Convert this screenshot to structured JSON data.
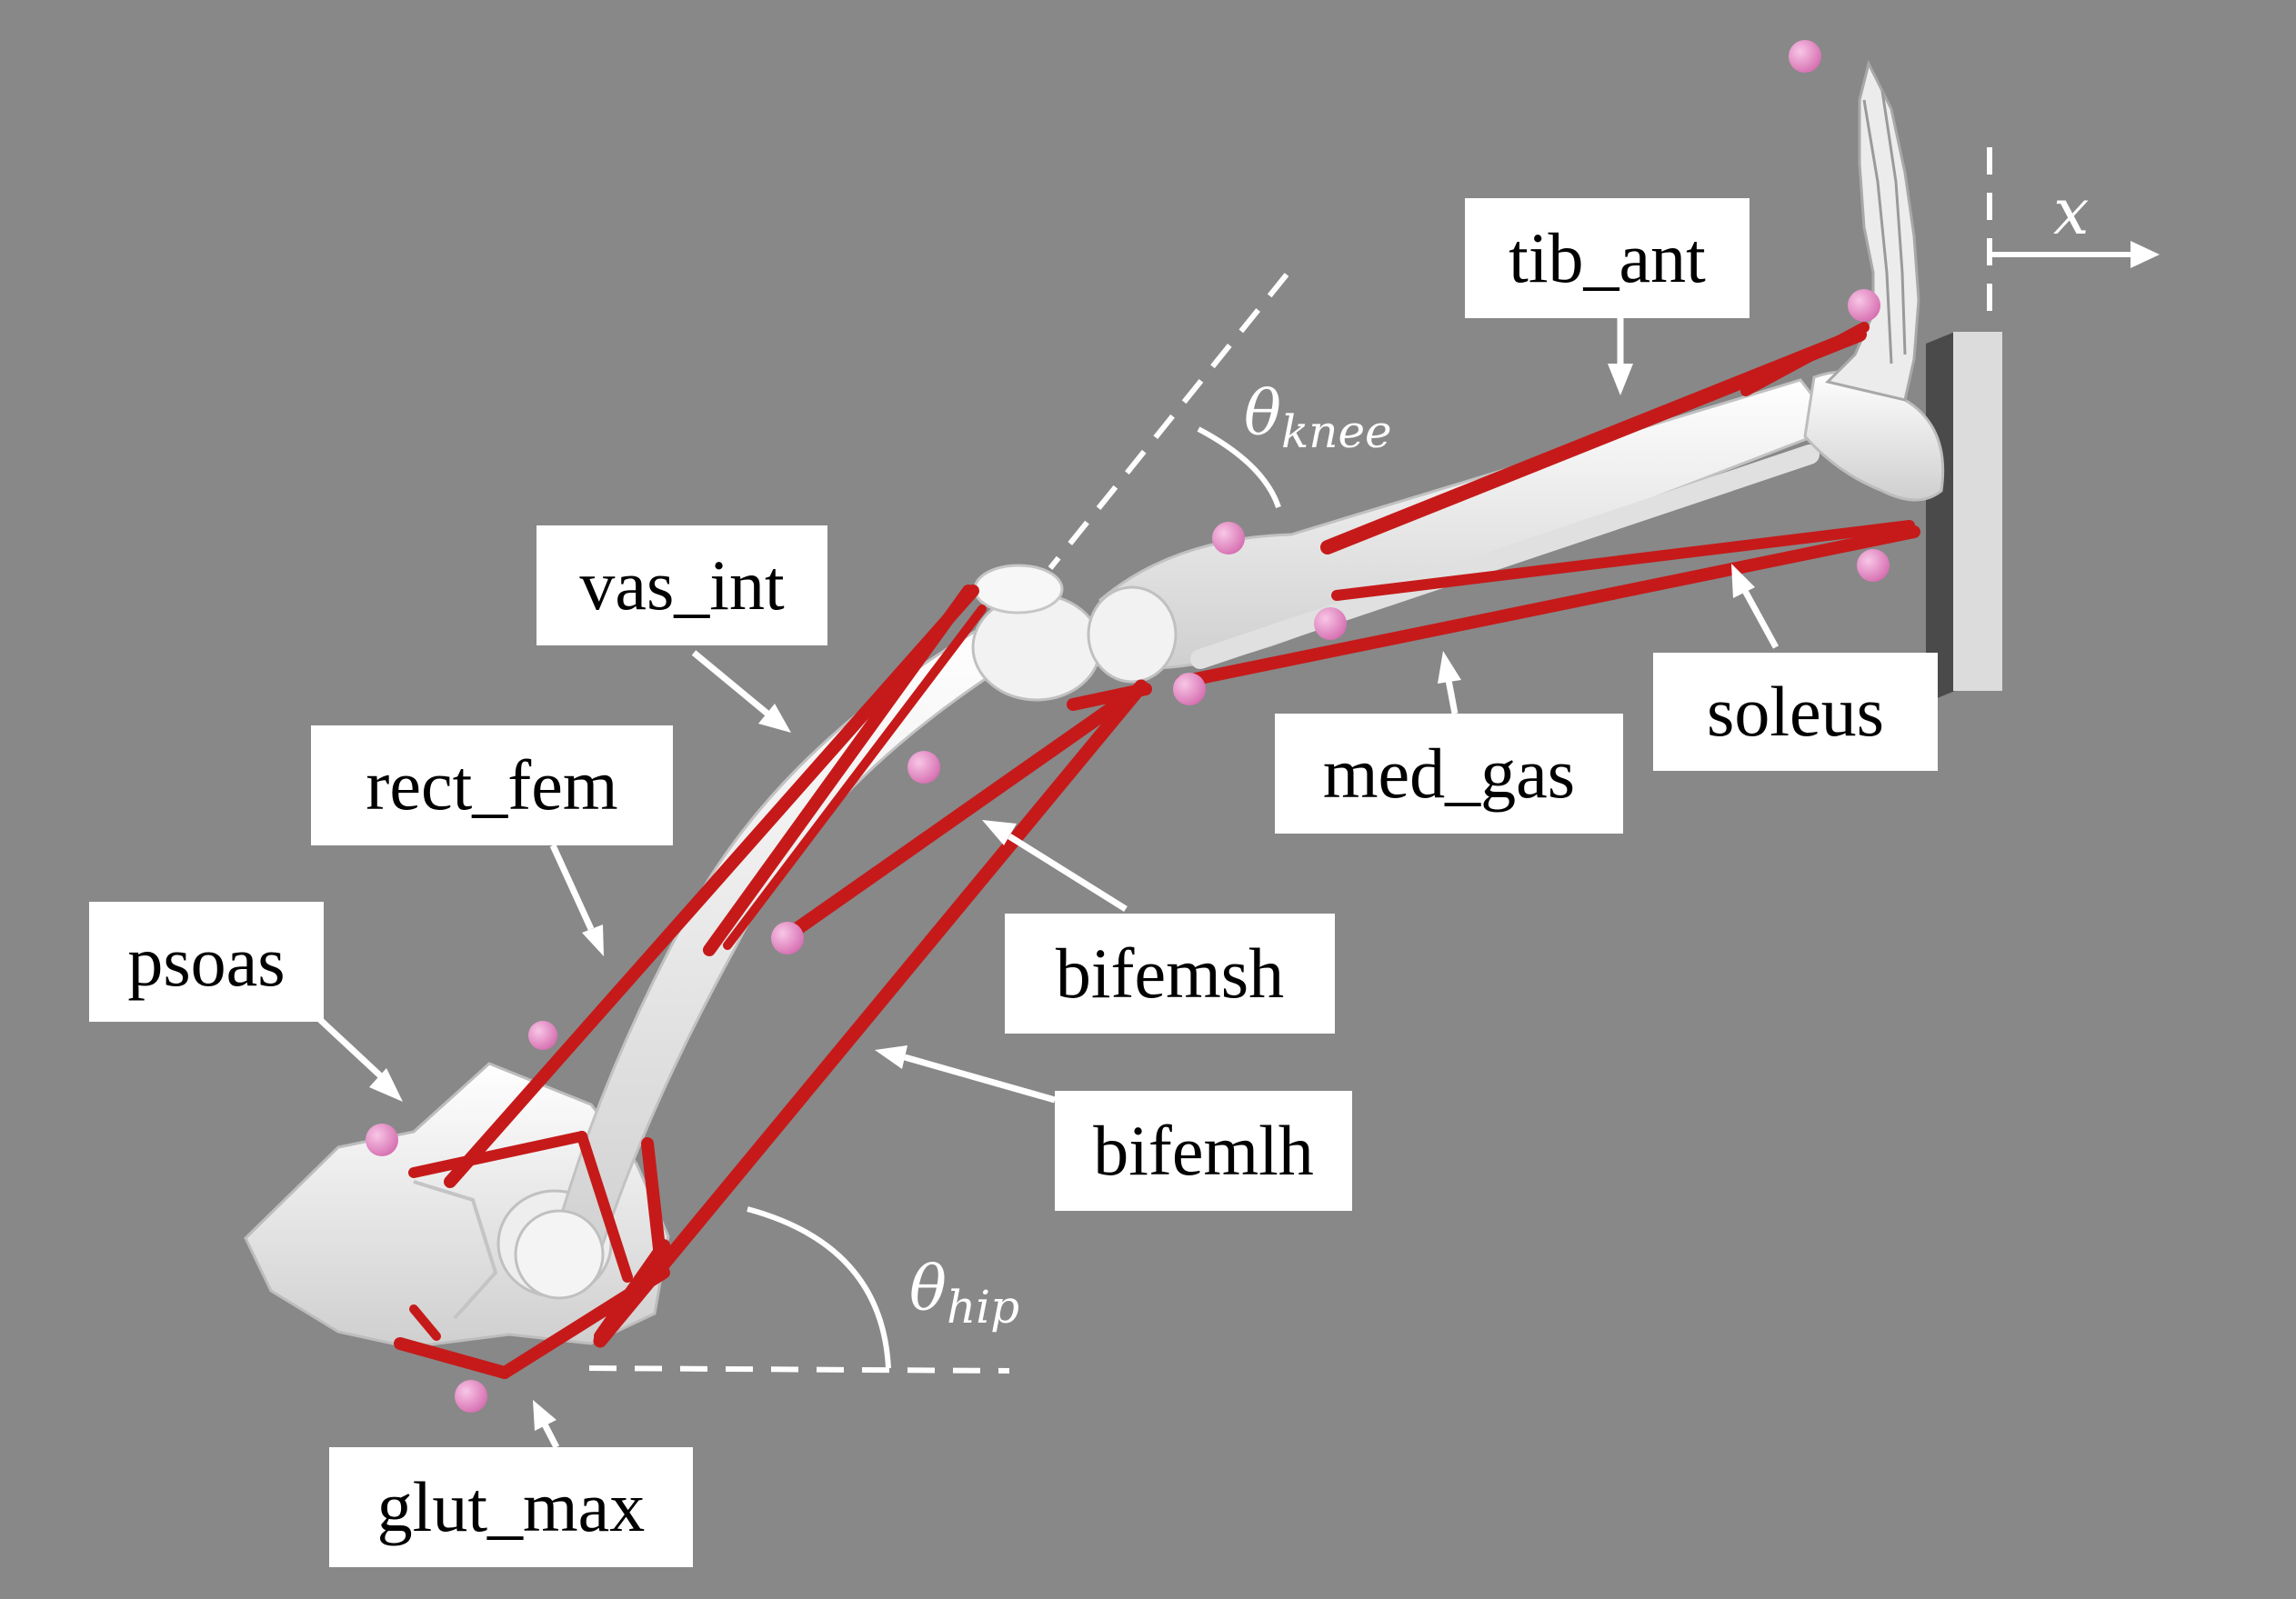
{
  "labels": {
    "tib_ant": "tib_ant",
    "vas_int": "vas_int",
    "rect_fem": "rect_fem",
    "psoas": "psoas",
    "soleus": "soleus",
    "med_gas": "med_gas",
    "bifemsh": "bifemsh",
    "bifemlh": "bifemlh",
    "glut_max": "glut_max"
  },
  "angles": {
    "knee_symbol": "θ",
    "knee_sub": "knee",
    "hip_symbol": "θ",
    "hip_sub": "hip"
  },
  "axis": {
    "x_label": "x"
  },
  "colors": {
    "background": "#888888",
    "muscle": "#c61a1a",
    "bone": "#f2f2f2",
    "marker": "#e58ac4",
    "annotation": "#ffffff"
  }
}
